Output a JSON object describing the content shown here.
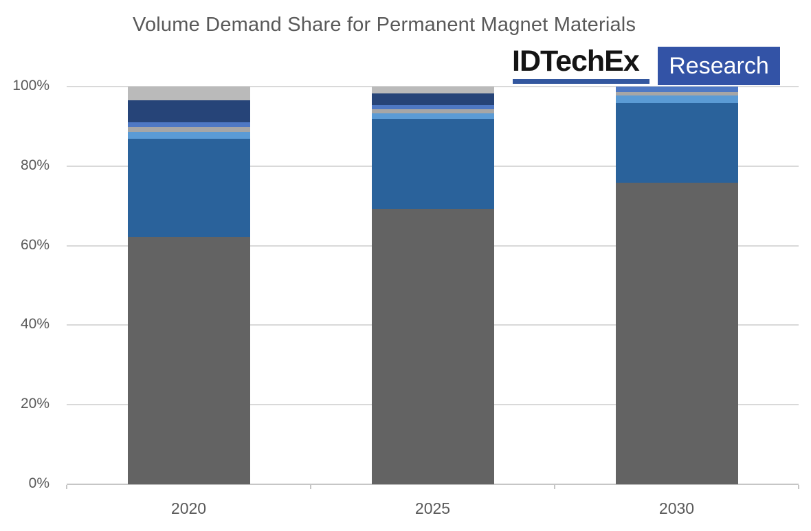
{
  "logo": {
    "brand": "IDTechEx",
    "product": "Research"
  },
  "colors": {
    "title_text": "#595959",
    "axis_text": "#595959",
    "gridline": "#D9D9D9",
    "axis_line": "#C6C6C6",
    "logo_underline": "#33579F",
    "logo_box": "#3353A6",
    "logo_brand_text": "#141414"
  },
  "chart_data": {
    "type": "bar",
    "stacked": true,
    "title": "Volume Demand Share for Permanent Magnet Materials",
    "xlabel": "",
    "ylabel": "",
    "categories": [
      "2020",
      "2025",
      "2030"
    ],
    "y_ticks": [
      "0%",
      "20%",
      "40%",
      "60%",
      "80%",
      "100%"
    ],
    "ylim": [
      0,
      100
    ],
    "grid": true,
    "legend": false,
    "series": [
      {
        "name": "dark-gray-segment",
        "color": "#636363",
        "values": [
          62.2,
          69.3,
          75.9
        ]
      },
      {
        "name": "blue-segment",
        "color": "#2A629B",
        "values": [
          24.7,
          22.6,
          19.9
        ]
      },
      {
        "name": "light-blue-segment",
        "color": "#5B9BD5",
        "values": [
          1.7,
          1.4,
          1.9
        ]
      },
      {
        "name": "gray-segment",
        "color": "#A6A6A6",
        "values": [
          1.2,
          1.0,
          1.0
        ]
      },
      {
        "name": "medium-blue-segment",
        "color": "#4E78C4",
        "values": [
          1.2,
          1.1,
          1.3
        ]
      },
      {
        "name": "navy-segment",
        "color": "#264478",
        "values": [
          5.5,
          2.9,
          0
        ]
      },
      {
        "name": "silver-segment",
        "color": "#BABABA",
        "values": [
          3.5,
          1.7,
          0
        ]
      }
    ]
  }
}
